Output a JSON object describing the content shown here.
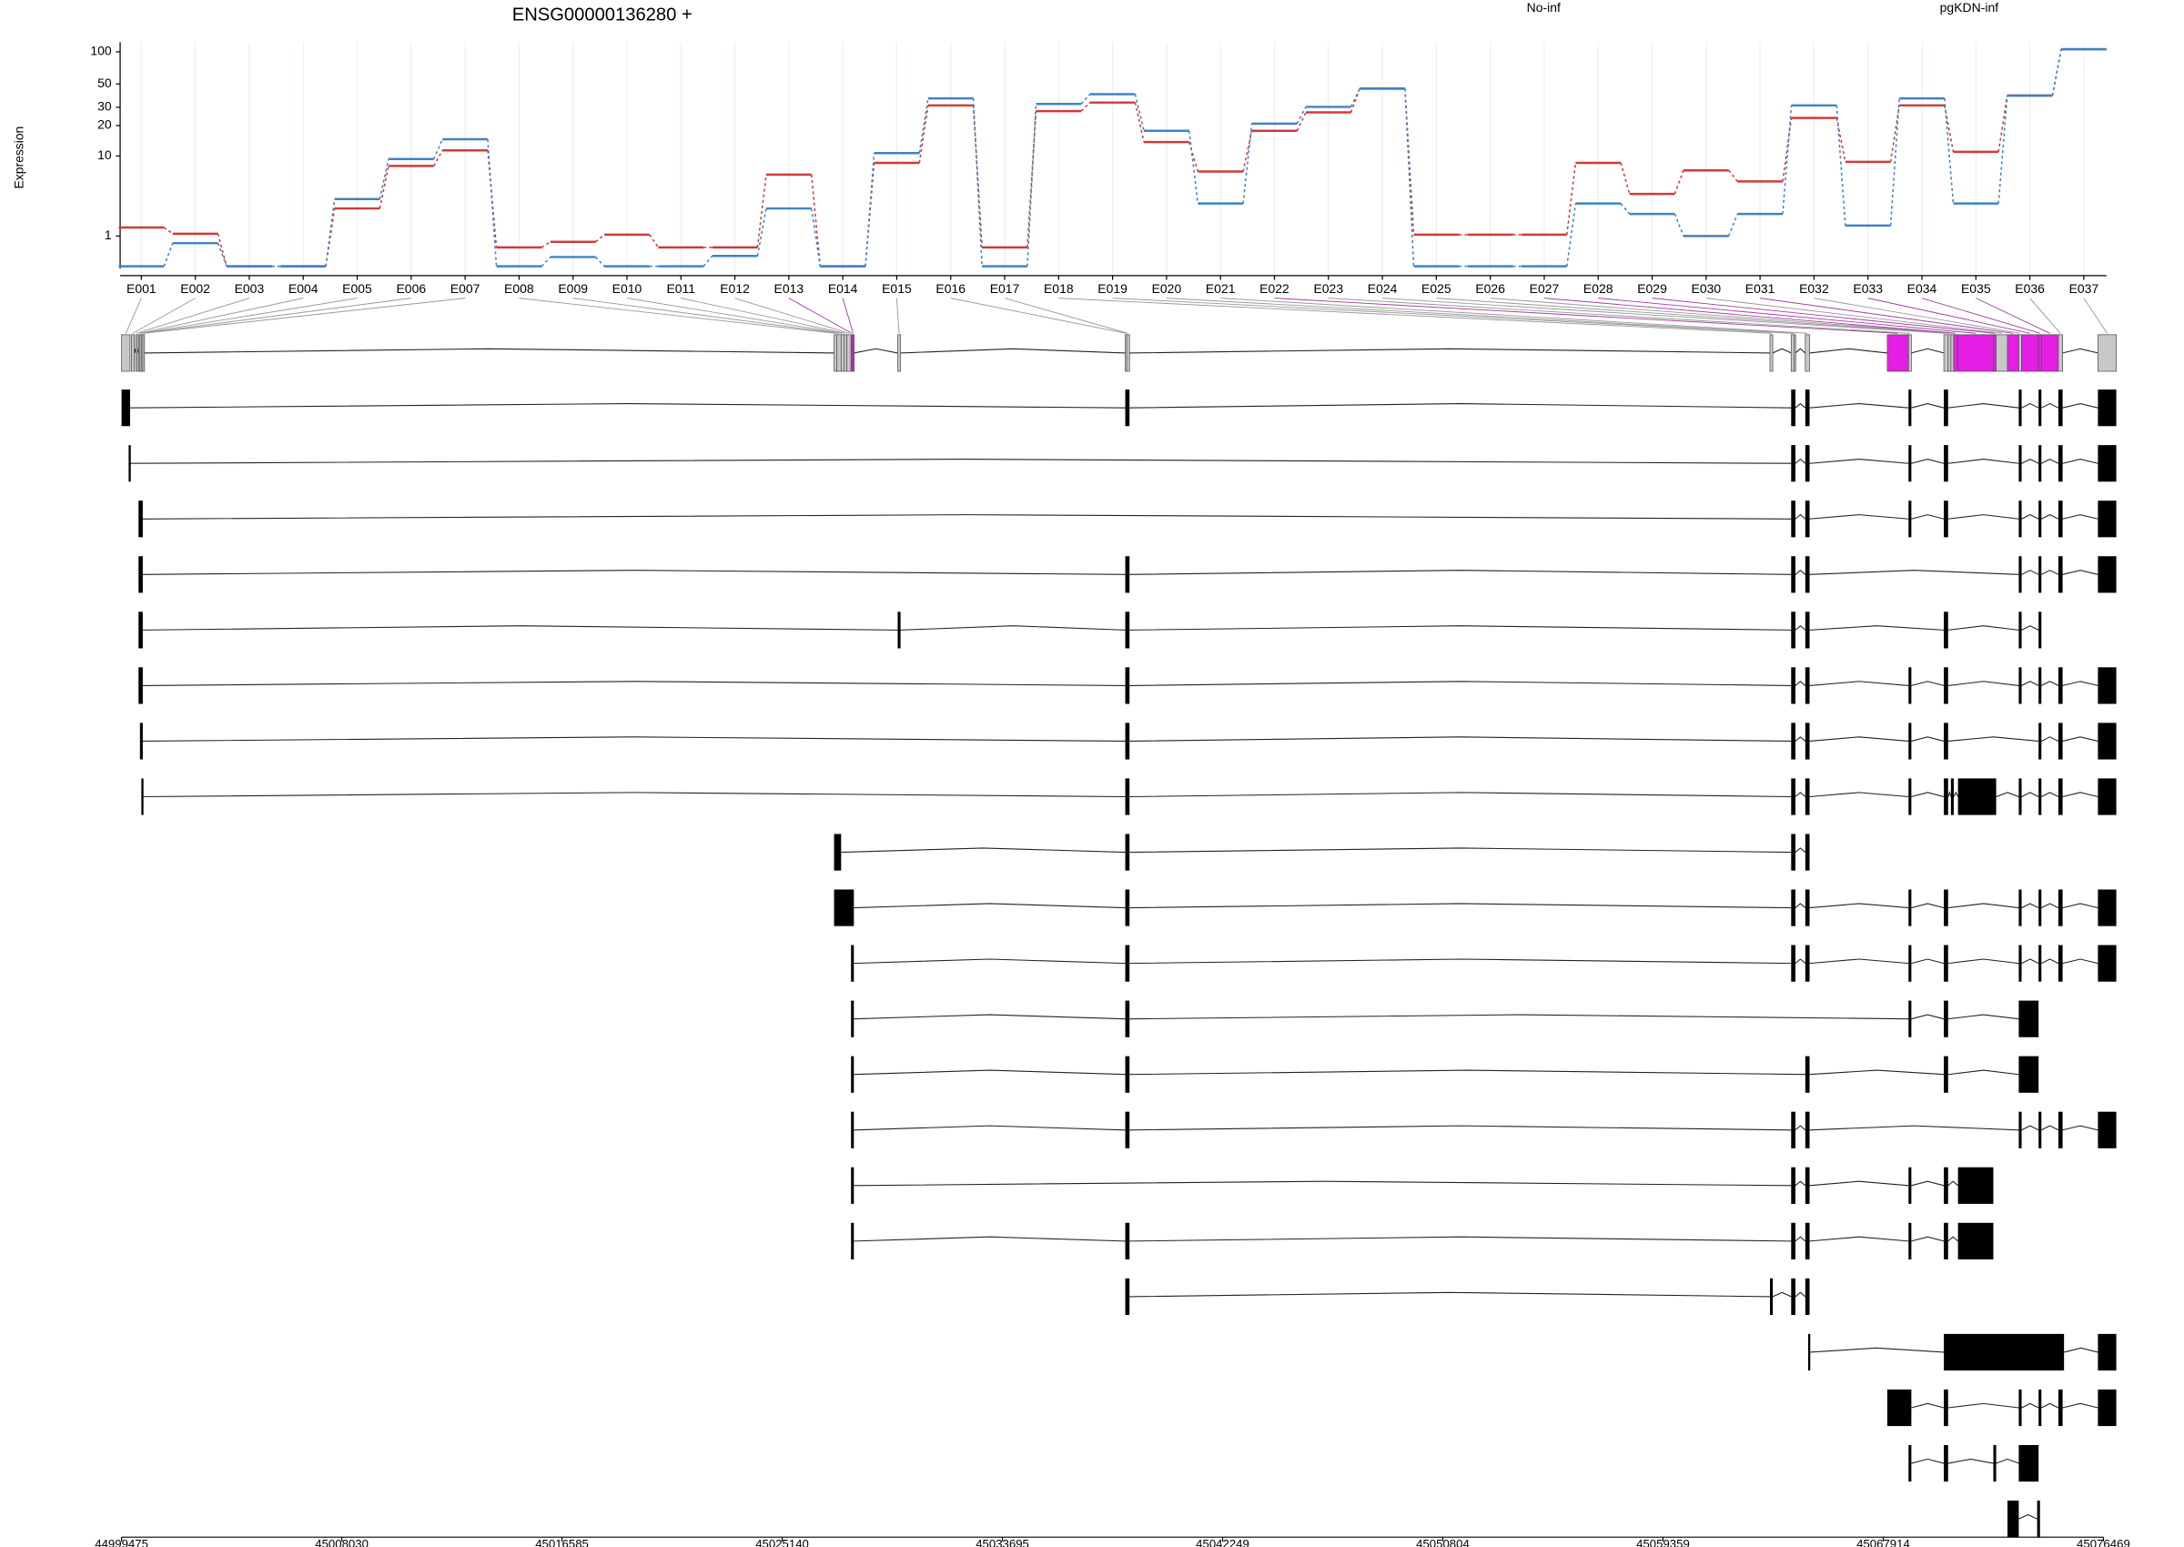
{
  "chart_data": [
    {
      "type": "line",
      "title": "ENSG00000136280 +",
      "ylabel": "Expression",
      "log_scale": true,
      "log_offset": 1,
      "grid": true,
      "categories": [
        "E001",
        "E002",
        "E003",
        "E004",
        "E005",
        "E006",
        "E007",
        "E008",
        "E009",
        "E010",
        "E011",
        "E012",
        "E013",
        "E014",
        "E015",
        "E016",
        "E017",
        "E018",
        "E019",
        "E020",
        "E021",
        "E022",
        "E023",
        "E024",
        "E025",
        "E026",
        "E027",
        "E028",
        "E029",
        "E030",
        "E031",
        "E032",
        "E033",
        "E034",
        "E035",
        "E036",
        "E037"
      ],
      "series": [
        {
          "name": "No-inf",
          "color": "#d03a3a",
          "values": [
            1.4,
            1.1,
            0.05,
            0.05,
            2.6,
            7.9,
            11.4,
            0.57,
            0.77,
            1.06,
            0.57,
            0.57,
            6.4,
            0.05,
            8.5,
            31.3,
            0.57,
            27.6,
            33.3,
            13.8,
            6.9,
            17.8,
            26.8,
            45.2,
            1.06,
            1.06,
            1.06,
            8.5,
            3.9,
            7.1,
            5.4,
            23.7,
            8.7,
            31.3,
            11,
            38.8,
            105.7
          ]
        },
        {
          "name": "pgKDN-inf",
          "color": "#3f83c4",
          "values": [
            0.05,
            0.72,
            0.05,
            0.05,
            3.4,
            9.3,
            14.7,
            0.05,
            0.28,
            0.05,
            0.05,
            0.31,
            2.6,
            0.05,
            10.7,
            36.5,
            0.05,
            32.3,
            40,
            17.8,
            3,
            20.9,
            30.3,
            45.2,
            0.05,
            0.05,
            0.05,
            3,
            2.2,
            1,
            2.2,
            31.3,
            1.5,
            36.5,
            3,
            38.8,
            105.7
          ]
        }
      ],
      "ylim": [
        0,
        123
      ],
      "yticks": [
        1,
        10,
        20,
        30,
        50,
        100
      ]
    },
    {
      "type": "gene_model",
      "xlim": [
        44999475,
        45076469
      ],
      "xticks": [
        44999475,
        45008030,
        45016585,
        45025140,
        45033695,
        45042249,
        45050804,
        45059359,
        45067914,
        45076469
      ],
      "bins": [
        {
          "start": 44999475,
          "end": 44999805,
          "color": "#c8c8c8"
        },
        {
          "start": 44999859,
          "end": 44999969,
          "color": "#c8c8c8"
        },
        {
          "start": 45000024,
          "end": 45000079,
          "color": "#c8c8c8"
        },
        {
          "start": 45000134,
          "end": 45000189,
          "color": "#c8c8c8"
        },
        {
          "start": 45000189,
          "end": 45000244,
          "color": "#c8c8c8"
        },
        {
          "start": 45000244,
          "end": 45000299,
          "color": "#c8c8c8"
        },
        {
          "start": 45000299,
          "end": 45000354,
          "color": "#c8c8c8"
        },
        {
          "start": 45027155,
          "end": 45027265,
          "color": "#c8c8c8"
        },
        {
          "start": 45027265,
          "end": 45027429,
          "color": "#c8c8c8"
        },
        {
          "start": 45027429,
          "end": 45027539,
          "color": "#c8c8c8"
        },
        {
          "start": 45027539,
          "end": 45027649,
          "color": "#c8c8c8"
        },
        {
          "start": 45027649,
          "end": 45027814,
          "color": "#c8c8c8"
        },
        {
          "start": 45027814,
          "end": 45027869,
          "color": "#e41ee4"
        },
        {
          "start": 45027869,
          "end": 45027924,
          "color": "#e41ee4"
        },
        {
          "start": 45029627,
          "end": 45029737,
          "color": "#c8c8c8"
        },
        {
          "start": 45038468,
          "end": 45038523,
          "color": "#c8c8c8"
        },
        {
          "start": 45038523,
          "end": 45038633,
          "color": "#c8c8c8"
        },
        {
          "start": 45063514,
          "end": 45063624,
          "color": "#c8c8c8"
        },
        {
          "start": 45064338,
          "end": 45064448,
          "color": "#c8c8c8"
        },
        {
          "start": 45064448,
          "end": 45064503,
          "color": "#c8c8c8"
        },
        {
          "start": 45064887,
          "end": 45065052,
          "color": "#c8c8c8"
        },
        {
          "start": 45068073,
          "end": 45068897,
          "color": "#e41ee4"
        },
        {
          "start": 45068897,
          "end": 45069007,
          "color": "#c8c8c8"
        },
        {
          "start": 45070270,
          "end": 45070435,
          "color": "#c8c8c8"
        },
        {
          "start": 45070435,
          "end": 45070544,
          "color": "#c8c8c8"
        },
        {
          "start": 45070544,
          "end": 45070654,
          "color": "#c8c8c8"
        },
        {
          "start": 45070654,
          "end": 45070819,
          "color": "#e41ee4"
        },
        {
          "start": 45070819,
          "end": 45072192,
          "color": "#e41ee4"
        },
        {
          "start": 45072192,
          "end": 45072302,
          "color": "#e41ee4"
        },
        {
          "start": 45072302,
          "end": 45072741,
          "color": "#c8c8c8"
        },
        {
          "start": 45072741,
          "end": 45073180,
          "color": "#e41ee4"
        },
        {
          "start": 45073180,
          "end": 45073290,
          "color": "#c8c8c8"
        },
        {
          "start": 45073290,
          "end": 45073949,
          "color": "#e41ee4"
        },
        {
          "start": 45073949,
          "end": 45074059,
          "color": "#e41ee4"
        },
        {
          "start": 45074059,
          "end": 45074718,
          "color": "#e41ee4"
        },
        {
          "start": 45074718,
          "end": 45074883,
          "color": "#c8c8c8"
        },
        {
          "start": 45076256,
          "end": 45076969,
          "color": "#c8c8c8"
        }
      ],
      "transcripts": [
        [
          [
            44999475,
            44999805
          ],
          [
            45038468,
            45038633
          ],
          [
            45064338,
            45064503
          ],
          [
            45064887,
            45065052
          ],
          [
            45068897,
            45069007
          ],
          [
            45070270,
            45070435
          ],
          [
            45073180,
            45073290
          ],
          [
            45073949,
            45074059
          ],
          [
            45074718,
            45074883
          ],
          [
            45076256,
            45076969
          ]
        ],
        [
          [
            44999750,
            44999805
          ],
          [
            45064338,
            45064503
          ],
          [
            45064887,
            45065052
          ],
          [
            45068897,
            45069007
          ],
          [
            45070270,
            45070435
          ],
          [
            45073180,
            45073290
          ],
          [
            45073949,
            45074059
          ],
          [
            45074718,
            45074883
          ],
          [
            45076256,
            45076969
          ]
        ],
        [
          [
            45000134,
            45000299
          ],
          [
            45064338,
            45064503
          ],
          [
            45064887,
            45065052
          ],
          [
            45068897,
            45069007
          ],
          [
            45070270,
            45070435
          ],
          [
            45073180,
            45073290
          ],
          [
            45073949,
            45074059
          ],
          [
            45074718,
            45074883
          ],
          [
            45076256,
            45076969
          ]
        ],
        [
          [
            45000134,
            45000299
          ],
          [
            45038468,
            45038633
          ],
          [
            45064338,
            45064503
          ],
          [
            45064887,
            45065052
          ],
          [
            45073180,
            45073290
          ],
          [
            45073949,
            45074059
          ],
          [
            45074718,
            45074883
          ],
          [
            45076256,
            45076969
          ]
        ],
        [
          [
            45000134,
            45000299
          ],
          [
            45029627,
            45029737
          ],
          [
            45038468,
            45038633
          ],
          [
            45064338,
            45064503
          ],
          [
            45064887,
            45065052
          ],
          [
            45070270,
            45070435
          ],
          [
            45073180,
            45073290
          ],
          [
            45073949,
            45074059
          ]
        ],
        [
          [
            45000134,
            45000299
          ],
          [
            45038468,
            45038633
          ],
          [
            45064338,
            45064503
          ],
          [
            45064887,
            45065052
          ],
          [
            45068897,
            45069007
          ],
          [
            45070270,
            45070435
          ],
          [
            45073180,
            45073290
          ],
          [
            45073949,
            45074059
          ],
          [
            45074718,
            45074883
          ],
          [
            45076256,
            45076969
          ]
        ],
        [
          [
            45000189,
            45000299
          ],
          [
            45038468,
            45038633
          ],
          [
            45064338,
            45064503
          ],
          [
            45064887,
            45065052
          ],
          [
            45068897,
            45069007
          ],
          [
            45070270,
            45070435
          ],
          [
            45073949,
            45074059
          ],
          [
            45074718,
            45074883
          ],
          [
            45076256,
            45076969
          ]
        ],
        [
          [
            45000244,
            45000299
          ],
          [
            45038468,
            45038633
          ],
          [
            45064338,
            45064503
          ],
          [
            45064887,
            45065052
          ],
          [
            45068897,
            45069007
          ],
          [
            45070270,
            45070435
          ],
          [
            45070544,
            45070654
          ],
          [
            45070819,
            45072302
          ],
          [
            45073180,
            45073290
          ],
          [
            45073949,
            45074059
          ],
          [
            45074718,
            45074883
          ],
          [
            45076256,
            45076969
          ]
        ],
        [
          [
            45027155,
            45027429
          ],
          [
            45038468,
            45038633
          ],
          [
            45064338,
            45064503
          ],
          [
            45064887,
            45065052
          ]
        ],
        [
          [
            45027155,
            45027924
          ],
          [
            45038468,
            45038633
          ],
          [
            45064338,
            45064503
          ],
          [
            45064887,
            45065052
          ],
          [
            45068897,
            45069007
          ],
          [
            45070270,
            45070435
          ],
          [
            45073180,
            45073290
          ],
          [
            45073949,
            45074059
          ],
          [
            45074718,
            45074883
          ],
          [
            45076256,
            45076969
          ]
        ],
        [
          [
            45027814,
            45027924
          ],
          [
            45038468,
            45038633
          ],
          [
            45064338,
            45064503
          ],
          [
            45064887,
            45065052
          ],
          [
            45068897,
            45069007
          ],
          [
            45070270,
            45070435
          ],
          [
            45073180,
            45073290
          ],
          [
            45073949,
            45074059
          ],
          [
            45074718,
            45074883
          ],
          [
            45076256,
            45076969
          ]
        ],
        [
          [
            45027814,
            45027924
          ],
          [
            45038468,
            45038633
          ],
          [
            45068897,
            45069007
          ],
          [
            45070270,
            45070435
          ],
          [
            45073180,
            45073949
          ]
        ],
        [
          [
            45027814,
            45027924
          ],
          [
            45038468,
            45038633
          ],
          [
            45064887,
            45065052
          ],
          [
            45070270,
            45070435
          ],
          [
            45073180,
            45073949
          ]
        ],
        [
          [
            45027814,
            45027924
          ],
          [
            45038468,
            45038633
          ],
          [
            45064338,
            45064503
          ],
          [
            45064887,
            45065052
          ],
          [
            45073180,
            45073290
          ],
          [
            45073949,
            45074059
          ],
          [
            45074718,
            45074883
          ],
          [
            45076256,
            45076969
          ]
        ],
        [
          [
            45027814,
            45027924
          ],
          [
            45064338,
            45064503
          ],
          [
            45064887,
            45065052
          ],
          [
            45068897,
            45069007
          ],
          [
            45070270,
            45070435
          ],
          [
            45070819,
            45072192
          ]
        ],
        [
          [
            45027814,
            45027924
          ],
          [
            45038468,
            45038633
          ],
          [
            45064338,
            45064503
          ],
          [
            45064887,
            45065052
          ],
          [
            45068897,
            45069007
          ],
          [
            45070270,
            45070435
          ],
          [
            45070819,
            45072192
          ]
        ],
        [
          [
            45038468,
            45038633
          ],
          [
            45063514,
            45063624
          ],
          [
            45064338,
            45064503
          ],
          [
            45064887,
            45065052
          ]
        ],
        [
          [
            45064997,
            45065052
          ],
          [
            45070270,
            45074938
          ],
          [
            45076256,
            45076969
          ]
        ],
        [
          [
            45068073,
            45069007
          ],
          [
            45070270,
            45070435
          ],
          [
            45073180,
            45073290
          ],
          [
            45073949,
            45074059
          ],
          [
            45074718,
            45074883
          ],
          [
            45076256,
            45076969
          ]
        ],
        [
          [
            45068897,
            45069007
          ],
          [
            45070270,
            45070435
          ],
          [
            45072192,
            45072302
          ],
          [
            45073180,
            45073949
          ]
        ],
        [
          [
            45072741,
            45073180
          ],
          [
            45073894,
            45074004
          ]
        ]
      ]
    }
  ]
}
